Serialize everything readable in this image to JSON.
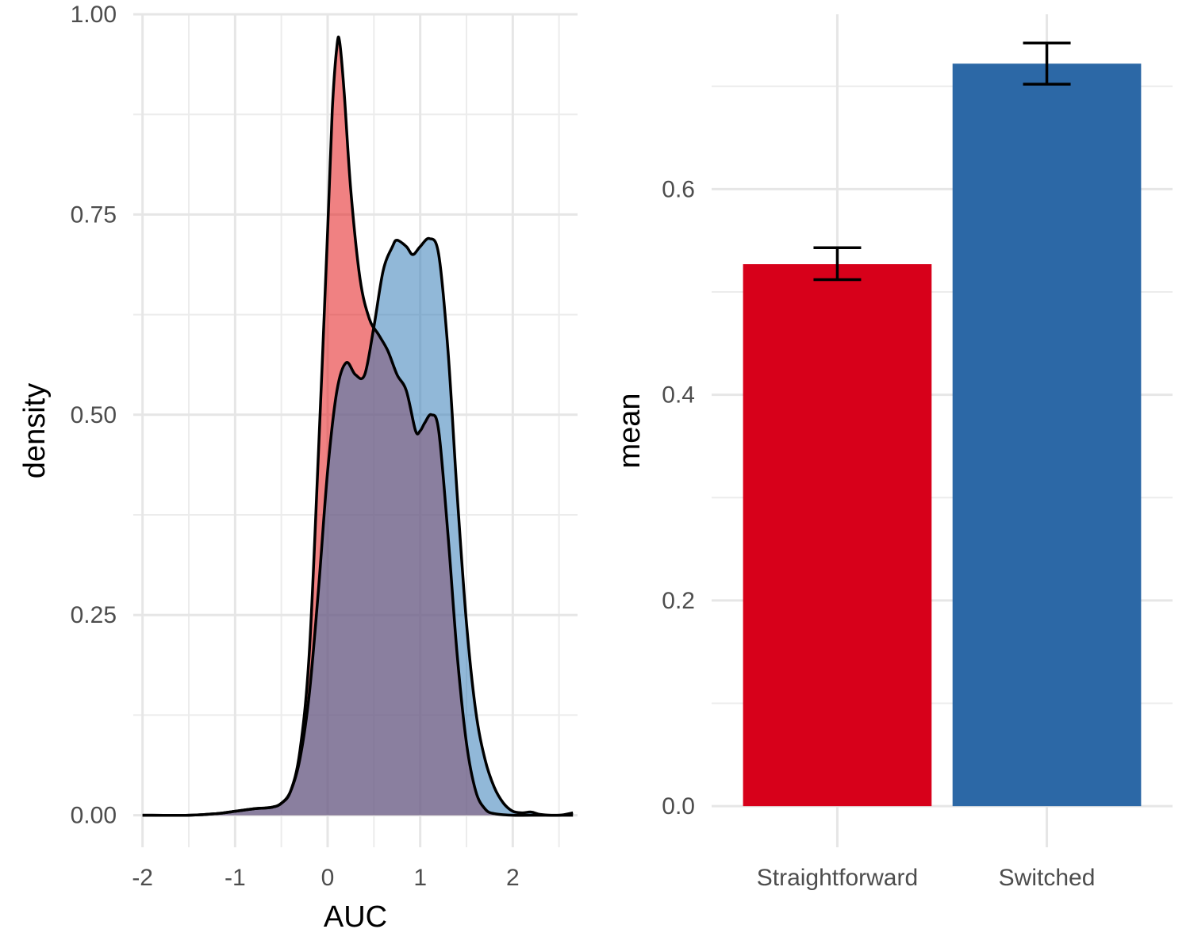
{
  "chart_data": [
    {
      "type": "area",
      "subtype": "density",
      "xlabel": "AUC",
      "ylabel": "density",
      "xlim": [
        -2.1,
        2.7
      ],
      "ylim": [
        -0.04,
        1.0
      ],
      "xticks": [
        {
          "value": -2,
          "label": "-2"
        },
        {
          "value": -1,
          "label": "-1"
        },
        {
          "value": 0,
          "label": "0"
        },
        {
          "value": 1,
          "label": "1"
        },
        {
          "value": 2,
          "label": "2"
        }
      ],
      "yticks": [
        {
          "value": 0,
          "label": "0.00"
        },
        {
          "value": 0.25,
          "label": "0.25"
        },
        {
          "value": 0.5,
          "label": "0.50"
        },
        {
          "value": 0.75,
          "label": "0.75"
        },
        {
          "value": 1.0,
          "label": "1.00"
        }
      ],
      "grid": true,
      "series": [
        {
          "color": "#e41a1c",
          "fill_opacity": 0.55,
          "x": [
            -2.0,
            -1.5,
            -1.2,
            -1.0,
            -0.8,
            -0.6,
            -0.5,
            -0.4,
            -0.3,
            -0.2,
            -0.1,
            0.0,
            0.05,
            0.1,
            0.13,
            0.18,
            0.25,
            0.35,
            0.45,
            0.55,
            0.65,
            0.75,
            0.85,
            0.95,
            1.0,
            1.05,
            1.12,
            1.2,
            1.3,
            1.4,
            1.5,
            1.6,
            1.7,
            1.8,
            2.0,
            2.2,
            2.65
          ],
          "y": [
            0.0,
            0.0,
            0.002,
            0.005,
            0.008,
            0.01,
            0.015,
            0.03,
            0.08,
            0.2,
            0.45,
            0.73,
            0.88,
            0.96,
            0.965,
            0.9,
            0.78,
            0.67,
            0.62,
            0.6,
            0.58,
            0.55,
            0.53,
            0.48,
            0.48,
            0.49,
            0.5,
            0.48,
            0.35,
            0.2,
            0.09,
            0.03,
            0.008,
            0.002,
            0.0,
            0.0,
            0.0
          ]
        },
        {
          "color": "#377eb8",
          "fill_opacity": 0.55,
          "x": [
            -2.0,
            -1.5,
            -1.2,
            -1.0,
            -0.8,
            -0.6,
            -0.5,
            -0.4,
            -0.3,
            -0.2,
            -0.1,
            0.0,
            0.1,
            0.2,
            0.3,
            0.4,
            0.5,
            0.6,
            0.7,
            0.75,
            0.85,
            0.92,
            1.0,
            1.1,
            1.2,
            1.3,
            1.4,
            1.5,
            1.6,
            1.7,
            1.8,
            1.9,
            2.0,
            2.1,
            2.2,
            2.3,
            2.5,
            2.65
          ],
          "y": [
            0.0,
            0.0,
            0.002,
            0.005,
            0.008,
            0.01,
            0.015,
            0.03,
            0.07,
            0.15,
            0.28,
            0.43,
            0.53,
            0.565,
            0.55,
            0.55,
            0.61,
            0.68,
            0.71,
            0.718,
            0.71,
            0.7,
            0.71,
            0.72,
            0.7,
            0.58,
            0.4,
            0.24,
            0.13,
            0.07,
            0.035,
            0.015,
            0.005,
            0.003,
            0.004,
            0.001,
            0.0,
            0.003
          ]
        }
      ]
    },
    {
      "type": "bar",
      "xlabel": "",
      "ylabel": "mean",
      "categories": [
        "Straightforward",
        "Switched"
      ],
      "values": [
        0.527,
        0.722
      ],
      "error": [
        {
          "low": 0.512,
          "high": 0.543
        },
        {
          "low": 0.702,
          "high": 0.742
        }
      ],
      "colors": [
        "#d7001a",
        "#2c68a6"
      ],
      "ylim": [
        -0.04,
        0.77
      ],
      "yticks": [
        {
          "value": 0.0,
          "label": "0.0"
        },
        {
          "value": 0.2,
          "label": "0.2"
        },
        {
          "value": 0.4,
          "label": "0.4"
        },
        {
          "value": 0.6,
          "label": "0.6"
        }
      ],
      "grid": true
    }
  ]
}
